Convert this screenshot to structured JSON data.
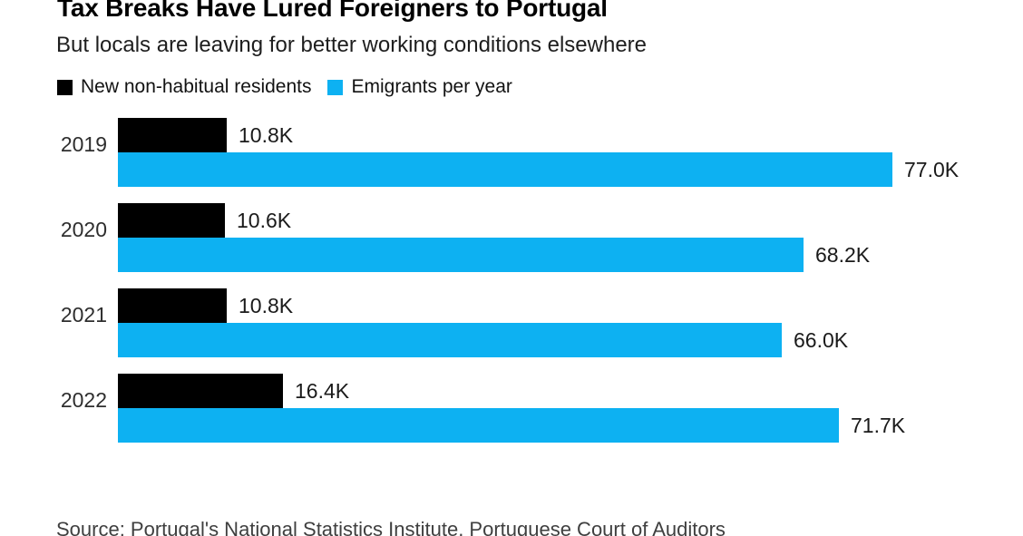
{
  "chart": {
    "title": "Tax Breaks Have Lured Foreigners to Portugal",
    "subtitle": "But locals are leaving for better working conditions elsewhere",
    "source": "Source: Portugal's National Statistics Institute, Portuguese Court of Auditors"
  },
  "colors": {
    "black_series": "#000000",
    "blue_series": "#0db1f2",
    "title_text": "#000000",
    "label_text": "#1a1a1a"
  },
  "chart_data": {
    "type": "bar",
    "orientation": "horizontal",
    "title": "Tax Breaks Have Lured Foreigners to Portugal",
    "subtitle": "But locals are leaving for better working conditions elsewhere",
    "xlabel": "",
    "ylabel": "",
    "unit": "thousands of people",
    "xlim": [
      0,
      77
    ],
    "grid": false,
    "legend_position": "top-left",
    "categories": [
      "2019",
      "2020",
      "2021",
      "2022"
    ],
    "series": [
      {
        "name": "New non-habitual residents",
        "color": "#000000",
        "values": [
          10.8,
          10.6,
          10.8,
          16.4
        ],
        "labels": [
          "10.8K",
          "10.6K",
          "10.8K",
          "16.4K"
        ]
      },
      {
        "name": "Emigrants per year",
        "color": "#0db1f2",
        "values": [
          77.0,
          68.2,
          66.0,
          71.7
        ],
        "labels": [
          "77.0K",
          "68.2K",
          "66.0K",
          "71.7K"
        ]
      }
    ]
  }
}
